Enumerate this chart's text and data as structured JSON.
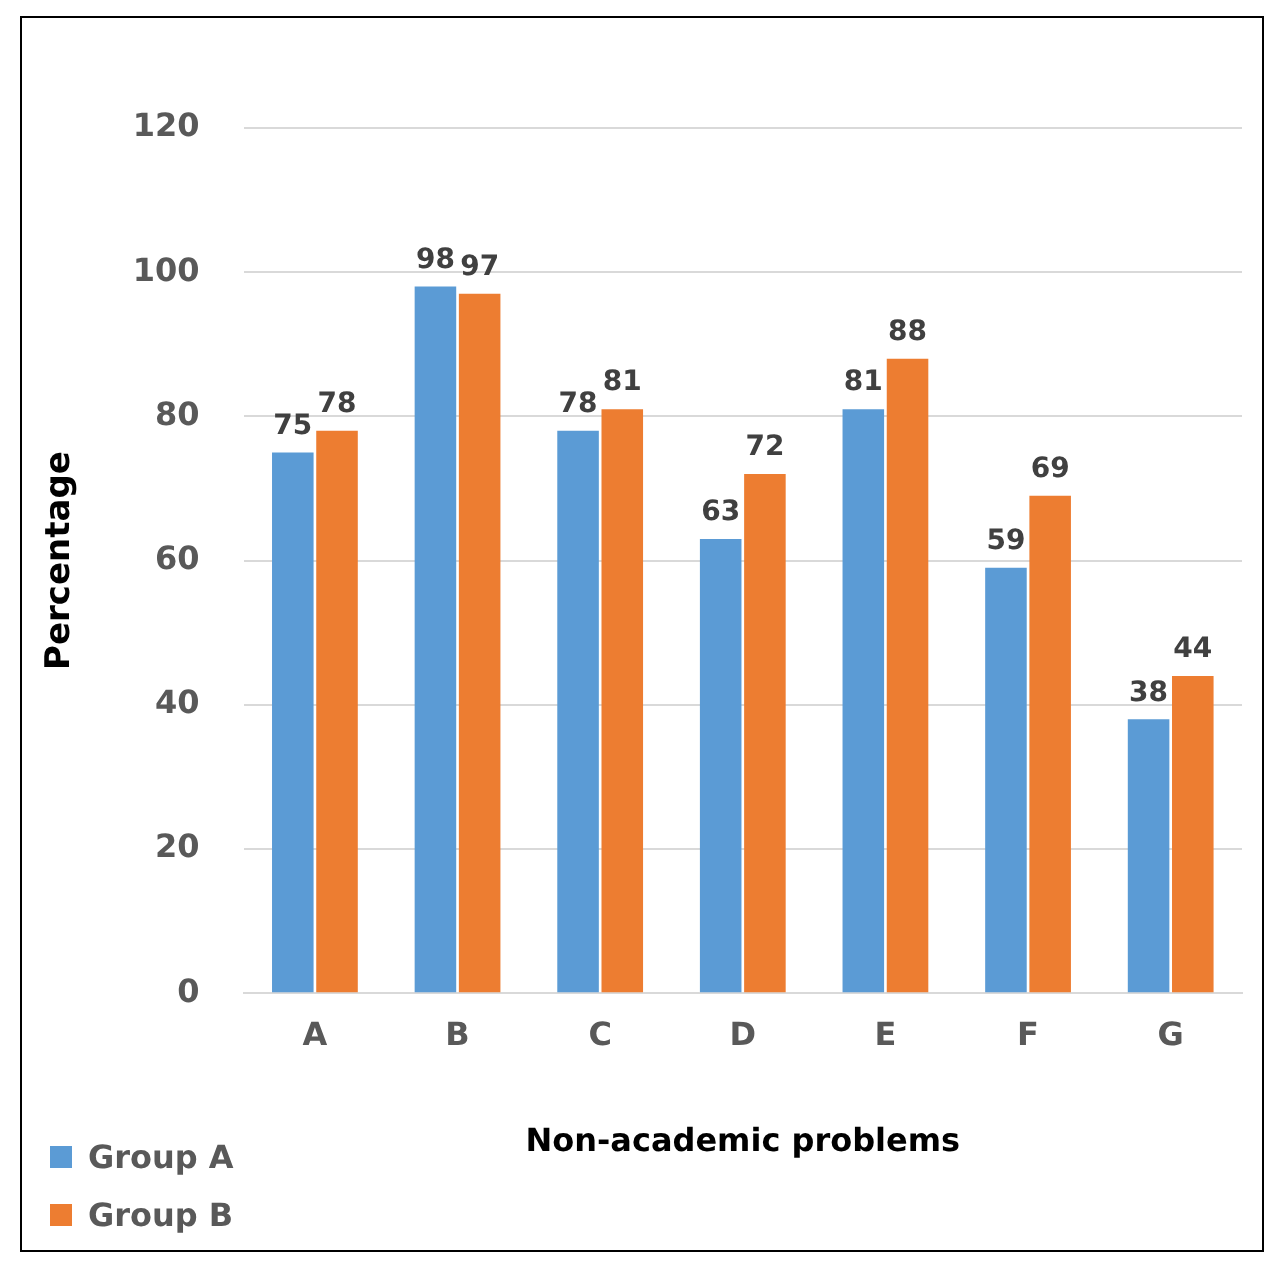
{
  "chart_data": {
    "type": "bar",
    "xlabel": "Non-academic problems",
    "ylabel": "Percentage",
    "categories": [
      "A",
      "B",
      "C",
      "D",
      "E",
      "F",
      "G"
    ],
    "series": [
      {
        "name": "Group A",
        "color": "#5b9bd5",
        "values": [
          75,
          98,
          78,
          63,
          81,
          59,
          38
        ]
      },
      {
        "name": "Group B",
        "color": "#ed7d31",
        "values": [
          78,
          97,
          81,
          72,
          88,
          69,
          44
        ]
      }
    ],
    "ylim": [
      0,
      120
    ],
    "yticks": [
      0,
      20,
      40,
      60,
      80,
      100,
      120
    ],
    "grid": "y",
    "legend": "bottom left",
    "data_labels": true
  }
}
